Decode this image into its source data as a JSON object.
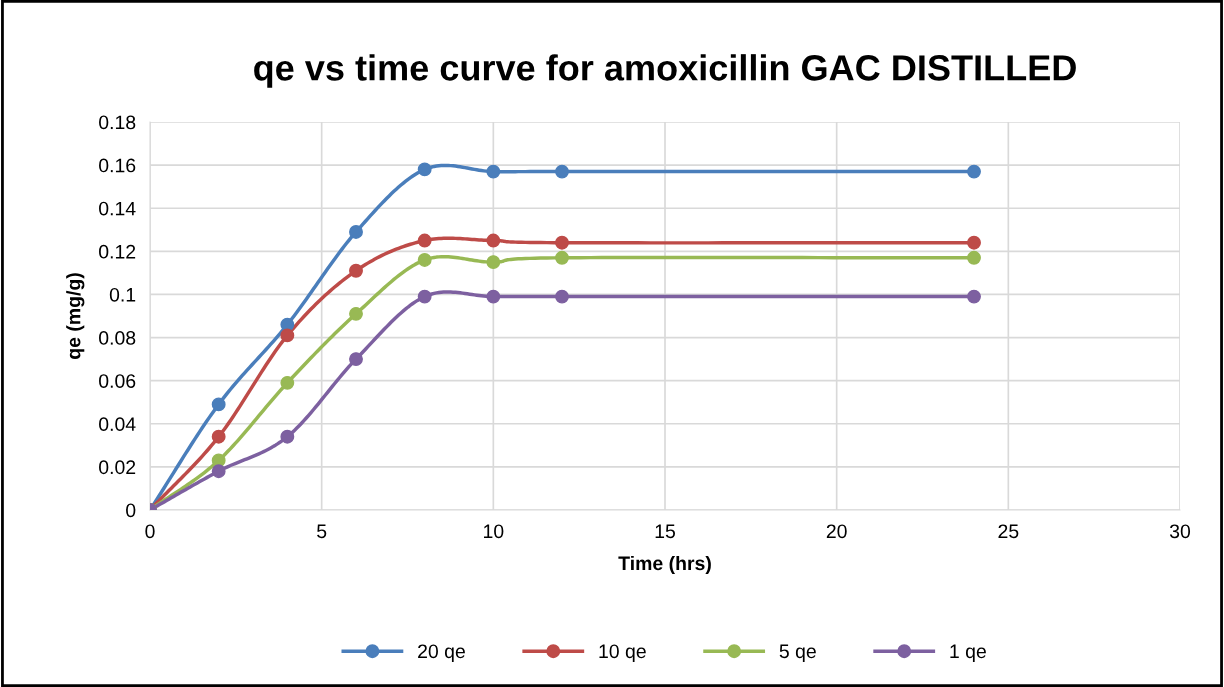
{
  "chart_data": {
    "type": "line",
    "title": "qe vs time curve for amoxicillin GAC DISTILLED",
    "xlabel": "Time (hrs)",
    "ylabel": "qe (mg/g)",
    "x": [
      0,
      2,
      4,
      6,
      8,
      10,
      12,
      24
    ],
    "series": [
      {
        "name": "20 qe",
        "color": "#4a7ebb",
        "values": [
          0,
          0.049,
          0.086,
          0.129,
          0.158,
          0.157,
          0.157,
          0.157
        ]
      },
      {
        "name": "10 qe",
        "color": "#be4b48",
        "values": [
          0,
          0.034,
          0.081,
          0.111,
          0.125,
          0.125,
          0.124,
          0.124
        ]
      },
      {
        "name": "5 qe",
        "color": "#98b954",
        "values": [
          0,
          0.023,
          0.059,
          0.091,
          0.116,
          0.115,
          0.117,
          0.117
        ]
      },
      {
        "name": "1 qe",
        "color": "#7d60a0",
        "values": [
          0,
          0.018,
          0.034,
          0.07,
          0.099,
          0.099,
          0.099,
          0.099
        ]
      }
    ],
    "xlim": [
      0,
      30
    ],
    "xticks": [
      0,
      5,
      10,
      15,
      20,
      25,
      30
    ],
    "ylim": [
      0,
      0.18
    ],
    "yticks": [
      0,
      0.02,
      0.04,
      0.06,
      0.08,
      0.1,
      0.12,
      0.14,
      0.16,
      0.18
    ],
    "grid": true,
    "legend": "bottom",
    "marker": "circle",
    "line_style": "solid"
  }
}
